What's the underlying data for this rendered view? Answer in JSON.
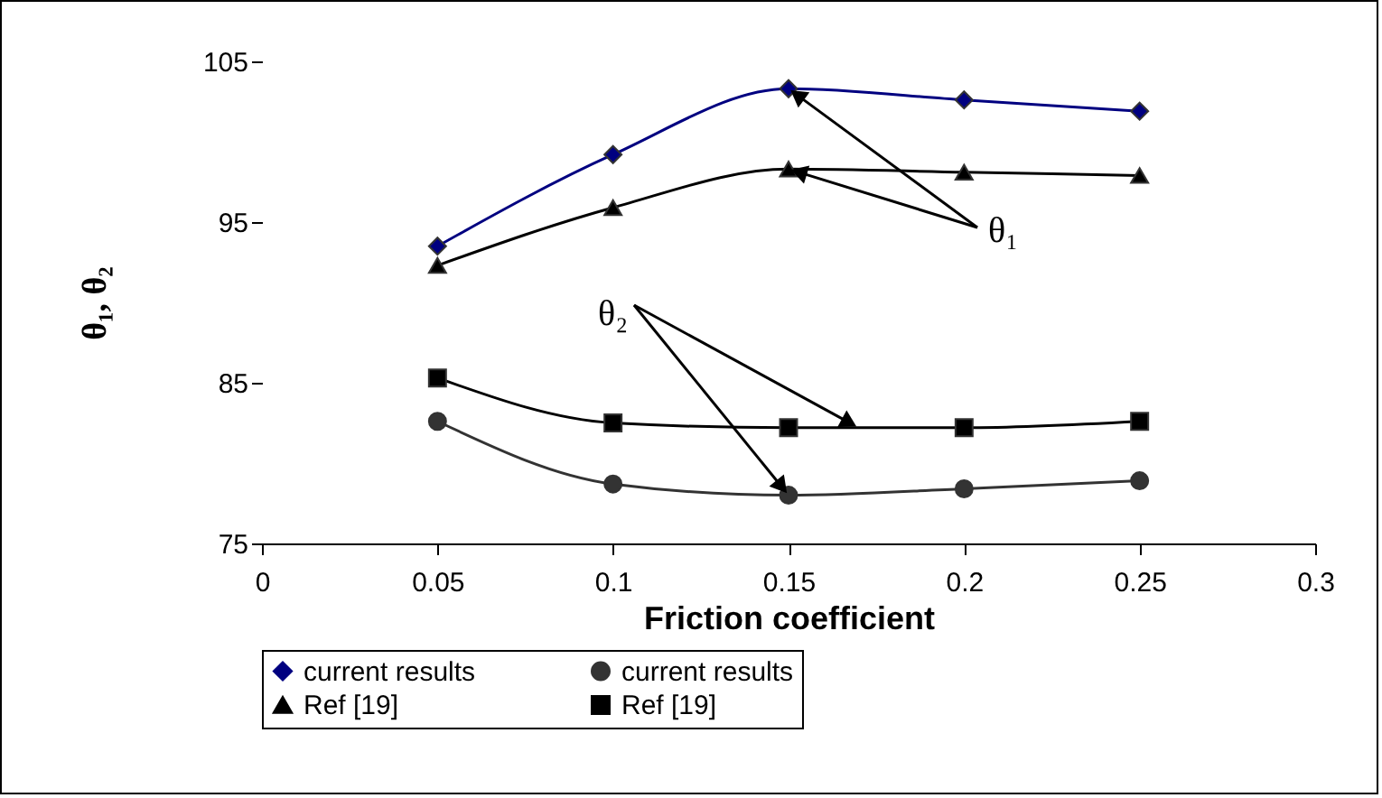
{
  "chart_data": {
    "type": "line",
    "xlabel": "Friction coefficient",
    "ylabel": "θ₁, θ₂",
    "x": [
      0.05,
      0.1,
      0.15,
      0.2,
      0.25
    ],
    "xlim": [
      0,
      0.3
    ],
    "xticks": [
      0,
      0.05,
      0.1,
      0.15,
      0.2,
      0.25,
      0.3
    ],
    "ylim": [
      75,
      105
    ],
    "yticks": [
      75,
      85,
      95,
      105
    ],
    "legend": "bottom",
    "grid": false,
    "line_style": "solid",
    "series": [
      {
        "name": "current results",
        "color": "#000080",
        "marker": "diamond",
        "values": [
          93.5,
          99.2,
          103.3,
          102.6,
          101.9
        ]
      },
      {
        "name": "current results",
        "color": "#333333",
        "marker": "circle",
        "values": [
          82.6,
          78.7,
          78.0,
          78.4,
          78.9
        ]
      },
      {
        "name": "Ref [19]",
        "color": "#000000",
        "marker": "triangle",
        "values": [
          92.3,
          95.9,
          98.3,
          98.1,
          97.9
        ]
      },
      {
        "name": "Ref [19]",
        "color": "#000000",
        "marker": "square",
        "values": [
          85.3,
          82.5,
          82.2,
          82.2,
          82.6
        ]
      }
    ],
    "annotations": [
      {
        "text": "θ₁",
        "x": 0.15,
        "y": 103.3
      },
      {
        "text": "θ₂",
        "x": 0.17,
        "y": 82.2
      }
    ]
  }
}
